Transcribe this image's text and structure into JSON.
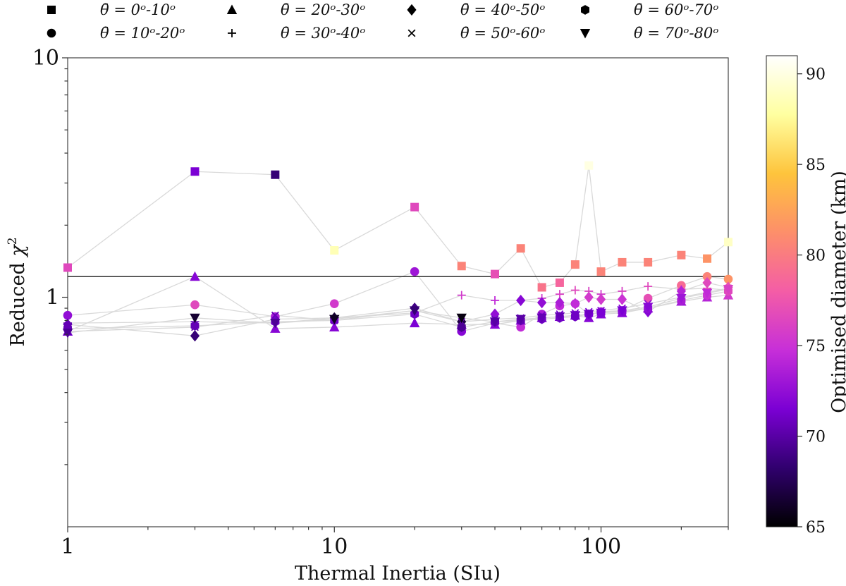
{
  "chart_data": {
    "type": "scatter",
    "xscale": "log",
    "yscale": "log",
    "xlim": [
      1,
      300
    ],
    "ylim": [
      0.11,
      10
    ],
    "xlabel": "Thermal Inertia (SIu)",
    "ylabel": "Reduced χ²",
    "ylabel_main": "Reduced ",
    "ylabel_symbol": "χ",
    "ylabel_sup": "2",
    "xticks": [
      {
        "value": 1,
        "label": "1"
      },
      {
        "value": 10,
        "label": "10"
      },
      {
        "value": 100,
        "label": "100"
      }
    ],
    "yticks": [
      {
        "value": 1,
        "label": "1"
      },
      {
        "value": 10,
        "label": "10"
      }
    ],
    "reference_line_y": 1.22,
    "colorbar": {
      "label": "Optimised diameter (km)",
      "min": 65,
      "max": 91,
      "ticks": [
        "65",
        "70",
        "75",
        "80",
        "85",
        "90"
      ],
      "colormap": [
        "#000000",
        "#30006e",
        "#7b00d4",
        "#c72fd8",
        "#f45da6",
        "#fd8f6a",
        "#fec43c",
        "#ffffa0",
        "#ffffff"
      ]
    },
    "legend": [
      {
        "marker": "square",
        "label": "θ̄ = 0ᵒ-10ᵒ"
      },
      {
        "marker": "circle",
        "label": "θ̄ = 10ᵒ-20ᵒ"
      },
      {
        "marker": "triangle-up",
        "label": "θ̄ = 20ᵒ-30ᵒ"
      },
      {
        "marker": "plus",
        "label": "θ̄ = 30ᵒ-40ᵒ"
      },
      {
        "marker": "diamond",
        "label": "θ̄ = 40ᵒ-50ᵒ"
      },
      {
        "marker": "x",
        "label": "θ̄ = 50ᵒ-60ᵒ"
      },
      {
        "marker": "hexagon",
        "label": "θ̄ = 60ᵒ-70ᵒ"
      },
      {
        "marker": "triangle-down",
        "label": "θ̄ = 70ᵒ-80ᵒ"
      }
    ],
    "x_values": [
      1,
      3,
      6,
      10,
      20,
      30,
      40,
      50,
      60,
      70,
      80,
      90,
      100,
      120,
      150,
      200,
      250,
      300
    ],
    "series": [
      {
        "name": "θ̄ = 0ᵒ-10ᵒ",
        "marker": "square",
        "y": [
          1.33,
          3.35,
          3.25,
          1.57,
          2.38,
          1.35,
          1.25,
          1.6,
          1.1,
          1.15,
          1.37,
          3.55,
          1.28,
          1.4,
          1.4,
          1.5,
          1.45,
          1.7
        ],
        "d": [
          76.5,
          71.5,
          68.5,
          88.5,
          76.5,
          80.5,
          77.0,
          80.5,
          79.5,
          78.5,
          80.5,
          90.0,
          80.5,
          80.5,
          80.5,
          80.5,
          81.5,
          89.0
        ]
      },
      {
        "name": "θ̄ = 10ᵒ-20ᵒ",
        "marker": "circle",
        "y": [
          0.84,
          0.93,
          0.83,
          0.94,
          1.28,
          0.72,
          0.78,
          0.75,
          0.85,
          0.92,
          0.94,
          0.85,
          0.87,
          0.88,
          0.99,
          1.12,
          1.22,
          1.19
        ],
        "d": [
          72.5,
          76.5,
          73.5,
          75.5,
          73.0,
          72.0,
          74.0,
          74.5,
          73.5,
          74.5,
          74.0,
          72.5,
          73.5,
          74.0,
          77.0,
          79.0,
          80.5,
          81.5
        ]
      },
      {
        "name": "θ̄ = 20ᵒ-30ᵒ",
        "marker": "triangle-up",
        "y": [
          0.72,
          1.22,
          0.74,
          0.75,
          0.78,
          0.77,
          0.77,
          0.8,
          0.82,
          0.83,
          0.84,
          0.82,
          0.85,
          0.86,
          0.9,
          0.96,
          1.0,
          1.02
        ],
        "d": [
          71.5,
          72.0,
          72.0,
          72.0,
          71.5,
          72.0,
          72.0,
          72.0,
          72.0,
          72.0,
          72.0,
          72.0,
          72.0,
          72.0,
          72.5,
          73.0,
          74.0,
          75.5
        ]
      },
      {
        "name": "θ̄ = 30ᵒ-40ᵒ",
        "marker": "plus",
        "y": [
          0.78,
          0.79,
          0.78,
          0.82,
          0.86,
          1.02,
          0.97,
          0.97,
          0.99,
          1.03,
          1.07,
          1.06,
          1.03,
          1.06,
          1.11,
          1.08,
          1.09,
          1.07
        ],
        "d": [
          70.0,
          70.5,
          71.0,
          72.0,
          73.0,
          75.5,
          74.5,
          75.0,
          75.5,
          76.0,
          76.5,
          76.0,
          75.5,
          76.0,
          76.5,
          76.5,
          77.0,
          77.0
        ]
      },
      {
        "name": "θ̄ = 40ᵒ-50ᵒ",
        "marker": "diamond",
        "y": [
          0.77,
          0.69,
          0.81,
          0.82,
          0.9,
          0.79,
          0.85,
          0.97,
          0.95,
          0.95,
          0.94,
          1.0,
          0.98,
          0.98,
          0.87,
          1.06,
          1.15,
          1.1
        ],
        "d": [
          70.5,
          68.5,
          72.0,
          66.5,
          69.0,
          67.0,
          72.5,
          72.0,
          72.5,
          73.5,
          74.5,
          75.5,
          75.5,
          75.0,
          72.0,
          74.0,
          76.5,
          77.0
        ]
      },
      {
        "name": "θ̄ = 50ᵒ-60ᵒ",
        "marker": "x",
        "y": [
          0.72,
          0.75,
          0.84,
          0.8,
          0.88,
          0.79,
          0.81,
          0.82,
          0.84,
          0.85,
          0.86,
          0.87,
          0.88,
          0.9,
          0.94,
          1.0,
          1.05,
          1.09
        ],
        "d": [
          70.0,
          70.0,
          70.5,
          70.5,
          70.5,
          70.5,
          71.0,
          71.0,
          71.0,
          71.5,
          71.5,
          71.5,
          72.0,
          72.0,
          72.5,
          73.5,
          74.5,
          75.5
        ]
      },
      {
        "name": "θ̄ = 60ᵒ-70ᵒ",
        "marker": "hexagon",
        "y": [
          0.74,
          0.76,
          0.79,
          0.8,
          0.85,
          0.75,
          0.79,
          0.8,
          0.81,
          0.82,
          0.83,
          0.85,
          0.86,
          0.87,
          0.9,
          0.97,
          1.02,
          1.06
        ],
        "d": [
          70.5,
          70.5,
          71.0,
          71.0,
          71.0,
          69.5,
          70.5,
          70.5,
          71.0,
          71.0,
          71.0,
          71.5,
          71.5,
          72.0,
          72.5,
          73.5,
          75.0,
          76.5
        ]
      },
      {
        "name": "θ̄ = 70ᵒ-80ᵒ",
        "marker": "triangle-down",
        "y": [
          0.71,
          0.82,
          0.78,
          0.81,
          0.88,
          0.82,
          0.79,
          0.81,
          0.82,
          0.83,
          0.84,
          0.85,
          0.86,
          0.88,
          0.91,
          0.99,
          1.04,
          1.08
        ],
        "d": [
          69.5,
          66.5,
          69.5,
          66.0,
          68.5,
          65.5,
          70.0,
          70.0,
          70.5,
          70.5,
          71.0,
          71.0,
          71.5,
          71.5,
          72.0,
          73.0,
          74.5,
          76.0
        ]
      }
    ]
  }
}
